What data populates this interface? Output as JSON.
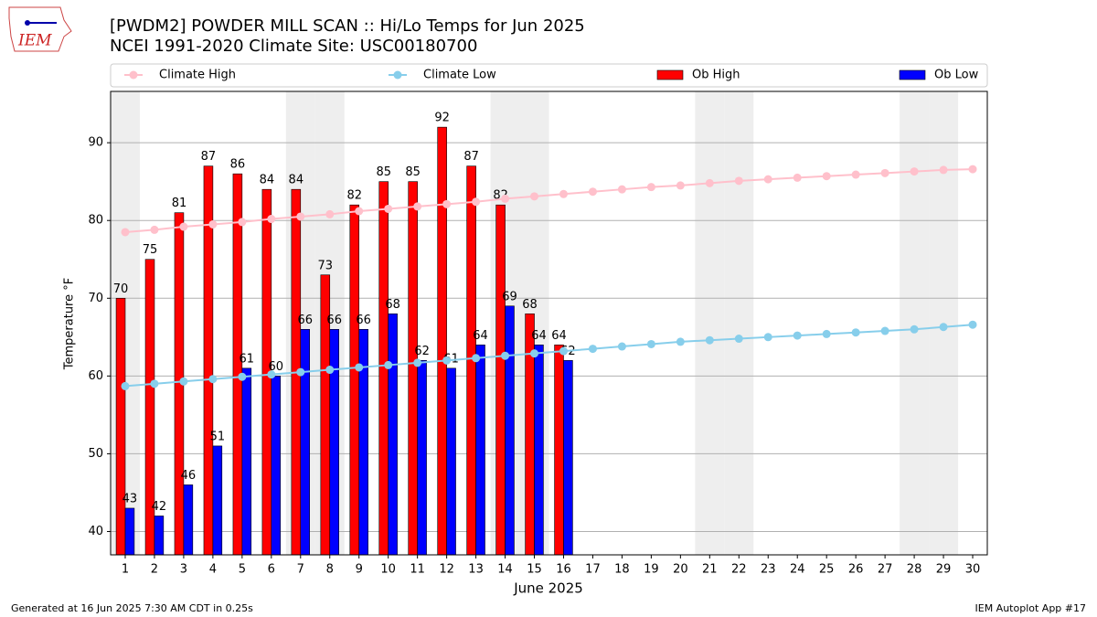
{
  "logo": "IEM",
  "chart_data": {
    "type": "bar",
    "title": "[PWDM2] POWDER MILL SCAN :: Hi/Lo Temps for Jun 2025",
    "subtitle": "NCEI 1991-2020 Climate Site: USC00180700",
    "x_label": "June 2025",
    "y_label": "Temperature °F",
    "x": [
      1,
      2,
      3,
      4,
      5,
      6,
      7,
      8,
      9,
      10,
      11,
      12,
      13,
      14,
      15,
      16,
      17,
      18,
      19,
      20,
      21,
      22,
      23,
      24,
      25,
      26,
      27,
      28,
      29,
      30
    ],
    "xticks": [
      1,
      2,
      3,
      4,
      5,
      6,
      7,
      8,
      9,
      10,
      11,
      12,
      13,
      14,
      15,
      16,
      17,
      18,
      19,
      20,
      21,
      22,
      23,
      24,
      25,
      26,
      27,
      28,
      29,
      30
    ],
    "xlim": [
      0.5,
      30.5
    ],
    "ylim": [
      37,
      96.6
    ],
    "yticks": [
      40,
      50,
      60,
      70,
      80,
      90
    ],
    "grid": true,
    "highlight_days": [
      1,
      7,
      8,
      14,
      15,
      21,
      22,
      28,
      29
    ],
    "series": [
      {
        "name": "Climate High",
        "color": "#ffc0cb",
        "kind": "line",
        "values": [
          78.5,
          78.8,
          79.2,
          79.5,
          79.8,
          80.2,
          80.5,
          80.8,
          81.2,
          81.5,
          81.8,
          82.1,
          82.4,
          82.8,
          83.1,
          83.4,
          83.7,
          84.0,
          84.3,
          84.5,
          84.8,
          85.1,
          85.3,
          85.5,
          85.7,
          85.9,
          86.1,
          86.3,
          86.5,
          86.6
        ]
      },
      {
        "name": "Climate Low",
        "color": "#87ceeb",
        "kind": "line",
        "values": [
          58.7,
          59.0,
          59.3,
          59.6,
          59.9,
          60.2,
          60.5,
          60.8,
          61.1,
          61.4,
          61.7,
          62.0,
          62.3,
          62.6,
          62.9,
          63.2,
          63.5,
          63.8,
          64.1,
          64.4,
          64.6,
          64.8,
          65.0,
          65.2,
          65.4,
          65.6,
          65.8,
          66.0,
          66.3,
          66.6
        ]
      },
      {
        "name": "Ob High",
        "color": "#ff0000",
        "kind": "bar",
        "values": [
          70,
          75,
          81,
          87,
          86,
          84,
          84,
          73,
          82,
          85,
          85,
          92,
          87,
          82,
          68,
          64,
          null,
          null,
          null,
          null,
          null,
          null,
          null,
          null,
          null,
          null,
          null,
          null,
          null,
          null
        ]
      },
      {
        "name": "Ob Low",
        "color": "#0000ff",
        "kind": "bar",
        "values": [
          43,
          42,
          46,
          51,
          61,
          60,
          66,
          66,
          66,
          68,
          62,
          61,
          64,
          69,
          64,
          62,
          null,
          null,
          null,
          null,
          null,
          null,
          null,
          null,
          null,
          null,
          null,
          null,
          null,
          null
        ]
      }
    ],
    "footer_left": "Generated at 16 Jun 2025 7:30 AM CDT in 0.25s",
    "footer_right": "IEM Autoplot App #17"
  }
}
